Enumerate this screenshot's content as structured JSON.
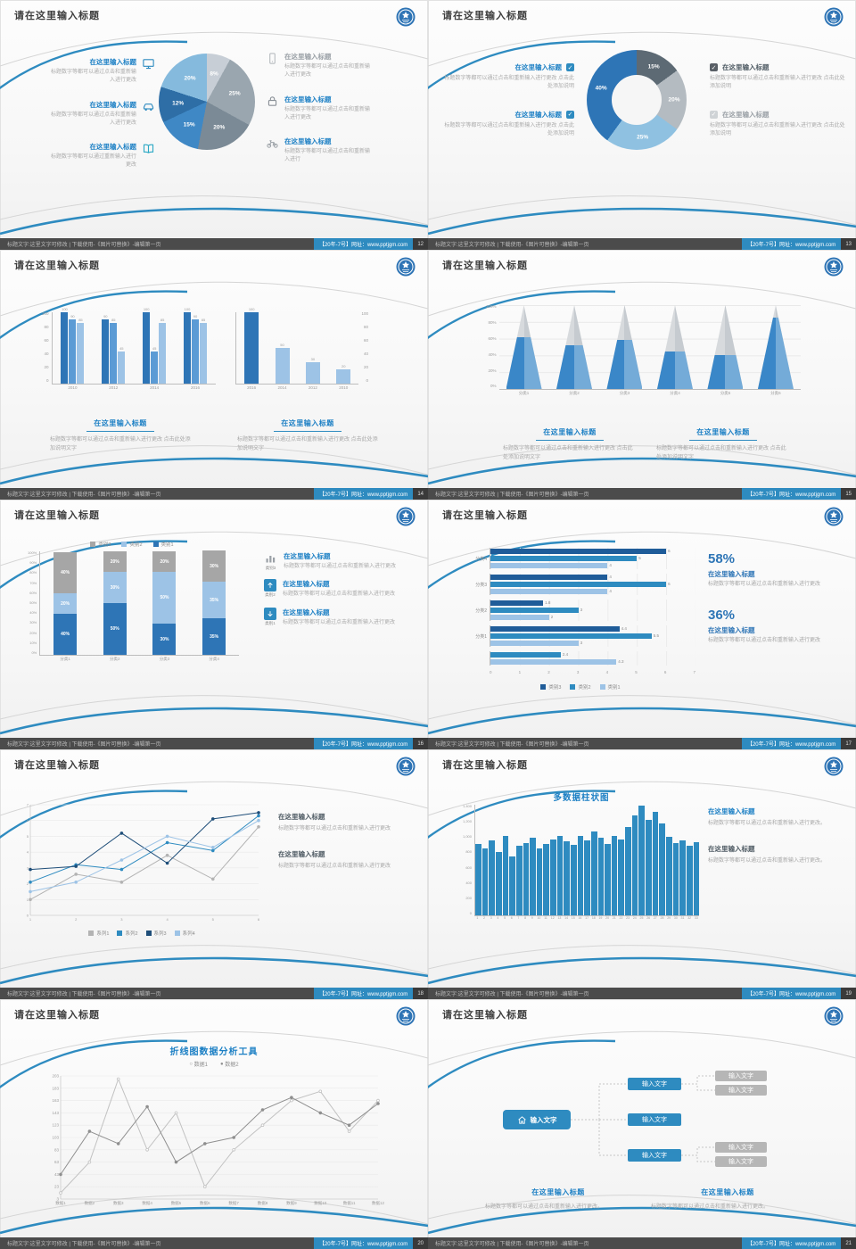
{
  "slide_title": "请在这里输入标题",
  "placeholder_title": "在这里输入标题",
  "footer": {
    "left": "标题文字:这里文字可修改 | 下载使用-《图片可替换》-编辑第一页",
    "right": "【20年-7号】网址：www.pptjgm.com"
  },
  "glyphs": {
    "check": "✓"
  },
  "palette": {
    "accent_blue": "#2e8bc0",
    "deep_blue": "#2e75b6",
    "light_blue": "#9dc3e6",
    "gray": "#a6a6a6",
    "footer_dark": "#4b4b4b"
  },
  "slides": [
    {
      "page": "12",
      "left_items": [
        {
          "icon": "monitor-icon",
          "title": "在这里输入标题",
          "body": "标题数字等都可以通过点击和重新输入进行更改"
        },
        {
          "icon": "car-icon",
          "title": "在这里输入标题",
          "body": "标题数字等都可以通过点击和重新输入进行更改"
        },
        {
          "icon": "book-icon",
          "title": "在这里输入标题",
          "body": "标题数字等都可以通过重新输入进行更改"
        }
      ],
      "right_items": [
        {
          "icon": "phone-icon",
          "title": "在这里输入标题",
          "body": "标题数字等都可以通过点击和重新输入进行更改"
        },
        {
          "icon": "lock-icon",
          "title": "在这里输入标题",
          "body": "标题数字等都可以通过点击和重新输入进行更改"
        },
        {
          "icon": "bike-icon",
          "title": "在这里输入标题",
          "body": "标题数字等都可以通过点击和重新输入进行"
        }
      ],
      "chart_data": {
        "type": "pie",
        "labels": [
          "8%",
          "25%",
          "20%",
          "15%",
          "12%",
          "20%"
        ],
        "values": [
          8,
          25,
          20,
          15,
          12,
          20
        ],
        "colors": [
          "#c7ced6",
          "#9aa6af",
          "#7b8a96",
          "#3f88c5",
          "#2e6ea6",
          "#85badd"
        ]
      }
    },
    {
      "page": "13",
      "left_items": [
        {
          "title": "在这里输入标题",
          "body": "标题数字等都可以通过点击和重新输入进行更改 点击此处添加说明"
        },
        {
          "title": "在这里输入标题",
          "body": "标题数字等都可以通过点击和重新输入进行更改 点击此处添加说明"
        }
      ],
      "right_items": [
        {
          "title": "在这里输入标题",
          "body": "标题数字等都可以通过点击和重新输入进行更改 点击此处添加说明"
        },
        {
          "title": "在这里输入标题",
          "body": "标题数字等都可以通过点击和重新输入进行更改 点击此处添加说明"
        }
      ],
      "chart_data": {
        "type": "donut",
        "labels": [
          "15%",
          "20%",
          "25%",
          "40%"
        ],
        "values": [
          15,
          20,
          25,
          40
        ],
        "colors": [
          "#5d6a74",
          "#b4bbc1",
          "#8fc1e1",
          "#2e75b6"
        ]
      }
    },
    {
      "page": "14",
      "chart_data": [
        {
          "type": "bar",
          "categories": [
            "2010",
            "2012",
            "2014",
            "2016"
          ],
          "values": [
            [
              100,
              90,
              85
            ],
            [
              90,
              85,
              45
            ],
            [
              100,
              45,
              85
            ],
            [
              100,
              90,
              85
            ]
          ],
          "colors": [
            "#2e75b6",
            "#5b9bd5",
            "#9dc3e6"
          ],
          "ymax": 100,
          "yticks": [
            "100",
            "80",
            "60",
            "40",
            "20",
            "0"
          ]
        },
        {
          "type": "bar",
          "categories": [
            "2016",
            "2014",
            "2012",
            "2010"
          ],
          "values": [
            [
              100
            ],
            [
              50
            ],
            [
              30
            ],
            [
              20
            ]
          ],
          "colors": [
            "#2e75b6",
            "#9dc3e6",
            "#9dc3e6",
            "#9dc3e6"
          ],
          "ymax": 100,
          "yticks": [
            "100",
            "80",
            "60",
            "40",
            "20",
            "0"
          ]
        }
      ],
      "blocks": [
        {
          "title": "在这里输入标题",
          "body": "标题数字等都可以通过点击和重新输入进行更改 点击此处添加说明文字"
        },
        {
          "title": "在这里输入标题",
          "body": "标题数字等都可以通过点击和重新输入进行更改 点击此处添加说明文字"
        }
      ]
    },
    {
      "page": "15",
      "chart_data": {
        "type": "cone",
        "categories": [
          "分类1",
          "分类2",
          "分类3",
          "分类4",
          "分类5",
          "分类6"
        ],
        "fill_percent": [
          62,
          52,
          58,
          45,
          40,
          85
        ],
        "yticks": [
          "100%",
          "80%",
          "60%",
          "40%",
          "20%",
          "0%"
        ]
      },
      "blocks": [
        {
          "title": "在这里输入标题",
          "body": "标题数字等都可以通过点击和重新输入进行更改 点击此处添加说明文字"
        },
        {
          "title": "在这里输入标题",
          "body": "标题数字等都可以通过点击和重新输入进行更改 点击此处添加说明文字"
        }
      ]
    },
    {
      "page": "16",
      "chart_data": {
        "type": "stacked-bar",
        "categories": [
          "分类1",
          "分类2",
          "分类3",
          "分类4"
        ],
        "series": [
          {
            "name": "类别1",
            "color": "#2e75b6",
            "values": [
              40,
              50,
              30,
              35
            ]
          },
          {
            "name": "类别2",
            "color": "#9dc3e6",
            "values": [
              20,
              30,
              50,
              35
            ]
          },
          {
            "name": "类别3",
            "color": "#a6a6a6",
            "values": [
              40,
              20,
              20,
              30
            ]
          }
        ],
        "yticks": [
          "100%",
          "90%",
          "80%",
          "70%",
          "60%",
          "50%",
          "40%",
          "30%",
          "20%",
          "10%",
          "0%"
        ]
      },
      "right_items": [
        {
          "icon": "bar-chart-icon",
          "caption": "类别3",
          "title": "在这里输入标题",
          "body": "标题数字等都可以通过点击和重新输入进行更改"
        },
        {
          "icon": "arrow-up-icon",
          "caption": "类别2",
          "title": "在这里输入标题",
          "body": "标题数字等都可以通过点击和重新输入进行更改"
        },
        {
          "icon": "arrow-down-icon",
          "caption": "类别1",
          "title": "在这里输入标题",
          "body": "标题数字等都可以通过点击和重新输入进行更改"
        }
      ]
    },
    {
      "page": "17",
      "chart_data": {
        "type": "bar-horizontal",
        "categories": [
          "分类4",
          "分类3",
          "分类2",
          "分类1"
        ],
        "series": [
          {
            "name": "类别3",
            "color": "#1f5c99",
            "values": [
              6,
              4,
              1.8,
              4.4
            ]
          },
          {
            "name": "类别2",
            "color": "#2e8bc0",
            "values": [
              5,
              6,
              3,
              5.5
            ]
          },
          {
            "name": "类别1",
            "color": "#9dc3e6",
            "values": [
              4,
              4,
              2,
              3
            ]
          }
        ],
        "extra_bars": [
          {
            "value": 2.4,
            "color": "#2e8bc0"
          },
          {
            "value": 4.3,
            "color": "#9dc3e6"
          }
        ],
        "xticks": [
          "0",
          "1",
          "2",
          "3",
          "4",
          "5",
          "6",
          "7"
        ],
        "xmax": 7
      },
      "stats": [
        {
          "value": "58%",
          "title": "在这里输入标题",
          "body": "标题数字等都可以通过点击和重新输入进行更改"
        },
        {
          "value": "36%",
          "title": "在这里输入标题",
          "body": "标题数字等都可以通过点击和重新输入进行更改"
        }
      ]
    },
    {
      "page": "18",
      "chart_data": {
        "type": "line",
        "x_labels": [
          "1",
          "2",
          "3",
          "4",
          "5",
          "6"
        ],
        "ymin": 0,
        "ymax": 7,
        "yticks": [
          "7",
          "6",
          "5",
          "4",
          "3",
          "2",
          "1",
          "0"
        ],
        "series": [
          {
            "name": "系列1",
            "color": "#b3b3b3",
            "values": [
              1.0,
              2.6,
              2.1,
              3.8,
              2.3,
              5.6
            ]
          },
          {
            "name": "系列2",
            "color": "#2e8bc0",
            "values": [
              2.1,
              3.2,
              2.9,
              4.6,
              4.1,
              6.3
            ]
          },
          {
            "name": "系列3",
            "color": "#1f4e79",
            "values": [
              2.9,
              3.1,
              5.2,
              3.3,
              6.1,
              6.5
            ]
          },
          {
            "name": "系列4",
            "color": "#9dc3e6",
            "values": [
              1.5,
              2.1,
              3.5,
              5.0,
              4.3,
              6.0
            ]
          }
        ]
      },
      "blocks": [
        {
          "title": "在这里输入标题",
          "body": "标题数字等都可以通过点击和重新输入进行更改"
        },
        {
          "title": "在这里输入标题",
          "body": "标题数字等都可以通过点击和重新输入进行更改"
        }
      ]
    },
    {
      "page": "19",
      "chart_title": "多数据柱状图",
      "chart_data": {
        "type": "bar",
        "color": "#2e8bc0",
        "ymax": 1400,
        "yticks": [
          "1,400",
          "1,200",
          "1,000",
          "800",
          "600",
          "400",
          "200",
          "0"
        ],
        "x_labels": [
          "1",
          "2",
          "3",
          "4",
          "5",
          "6",
          "7",
          "8",
          "9",
          "10",
          "11",
          "12",
          "13",
          "14",
          "15",
          "16",
          "17",
          "18",
          "19",
          "20",
          "21",
          "22",
          "23",
          "24",
          "25",
          "26",
          "27",
          "28",
          "29",
          "30",
          "31",
          "32",
          "33"
        ],
        "values": [
          900,
          850,
          950,
          800,
          1000,
          750,
          880,
          920,
          980,
          850,
          900,
          960,
          1010,
          940,
          890,
          1000,
          950,
          1060,
          980,
          900,
          1010,
          960,
          1120,
          1260,
          1390,
          1210,
          1310,
          1160,
          990,
          910,
          950,
          880,
          930
        ]
      },
      "blocks": [
        {
          "title": "在这里输入标题",
          "body": "标题数字等都可以通过点击和重新输入进行更改。"
        },
        {
          "title": "在这里输入标题",
          "body": "标题数字等都可以通过点击和重新输入进行更改。"
        }
      ]
    },
    {
      "page": "20",
      "chart_title": "折线图数据分析工具",
      "legend": [
        {
          "marker": "○",
          "label": "数据1"
        },
        {
          "marker": "●",
          "label": "数据2"
        }
      ],
      "chart_data": {
        "type": "line",
        "ymin": 3,
        "ymax": 203,
        "yticks": [
          "203",
          "183",
          "163",
          "143",
          "123",
          "103",
          "83",
          "63",
          "43",
          "23",
          "3"
        ],
        "x_labels": [
          "数据1",
          "数据2",
          "数据3",
          "数据4",
          "数据5",
          "数据6",
          "数据7",
          "数据8",
          "数据9",
          "数据10",
          "数据11",
          "数据12"
        ],
        "series": [
          {
            "name": "数据1",
            "color": "#c2c2c2",
            "marker": "hollow",
            "values": [
              13,
              63,
              198,
              83,
              143,
              23,
              83,
              123,
              163,
              178,
              113,
              163
            ]
          },
          {
            "name": "数据2",
            "color": "#8f8f8f",
            "marker": "filled",
            "values": [
              43,
              113,
              93,
              153,
              63,
              93,
              103,
              148,
              168,
              143,
              123,
              158
            ]
          }
        ]
      }
    },
    {
      "page": "21",
      "diagram": {
        "root_label": "输入文字",
        "blue_nodes": [
          "输入文字",
          "输入文字",
          "输入文字"
        ],
        "gray_nodes": [
          "输入文字",
          "输入文字",
          "输入文字",
          "输入文字"
        ]
      },
      "blocks": [
        {
          "title": "在这里输入标题",
          "body": "标题数字等都可以通过点击和重新输入进行更改。"
        },
        {
          "title": "在这里输入标题",
          "body": "标题数字等都可以通过点击和重新输入进行更改。"
        }
      ]
    }
  ]
}
